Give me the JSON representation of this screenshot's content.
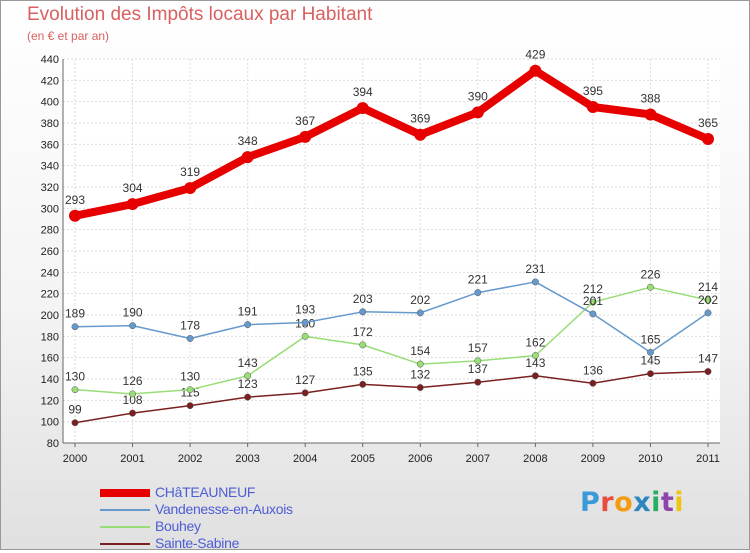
{
  "title": "Evolution des Impôts locaux par Habitant",
  "subtitle": "(en € et par an)",
  "logo": {
    "letters": [
      {
        "char": "P",
        "color": "#3a9ad9"
      },
      {
        "char": "r",
        "color": "#e74c3c"
      },
      {
        "char": "o",
        "color": "#f39c12"
      },
      {
        "char": "x",
        "color": "#2e86c1"
      },
      {
        "char": "i",
        "color": "#27ae60"
      },
      {
        "char": "t",
        "color": "#8e44ad"
      },
      {
        "char": "i",
        "color": "#f1c40f"
      }
    ]
  },
  "chart_data": {
    "type": "line",
    "title": "Evolution des Impôts locaux par Habitant",
    "subtitle": "(en € et par an)",
    "x": [
      2000,
      2001,
      2002,
      2003,
      2004,
      2005,
      2006,
      2007,
      2008,
      2009,
      2010,
      2011
    ],
    "ylim": [
      80,
      440
    ],
    "yticks": [
      80,
      100,
      120,
      140,
      160,
      180,
      200,
      220,
      240,
      260,
      280,
      300,
      320,
      340,
      360,
      380,
      400,
      420,
      440
    ],
    "grid": true,
    "legend_position": "bottom-left",
    "series": [
      {
        "name": "CHâTEAUNEUF",
        "color": "#e60000",
        "values": [
          293,
          304,
          319,
          348,
          367,
          394,
          369,
          390,
          429,
          395,
          388,
          365
        ]
      },
      {
        "name": "Vandenesse-en-Auxois",
        "color": "#6699cc",
        "values": [
          189,
          190,
          178,
          191,
          193,
          203,
          202,
          221,
          231,
          201,
          165,
          202
        ]
      },
      {
        "name": "Bouhey",
        "color": "#99dd77",
        "values": [
          130,
          126,
          130,
          143,
          180,
          172,
          154,
          157,
          162,
          212,
          226,
          214
        ]
      },
      {
        "name": "Sainte-Sabine",
        "color": "#7a2020",
        "values": [
          99,
          108,
          115,
          123,
          127,
          135,
          132,
          137,
          143,
          136,
          145,
          147
        ]
      }
    ]
  }
}
